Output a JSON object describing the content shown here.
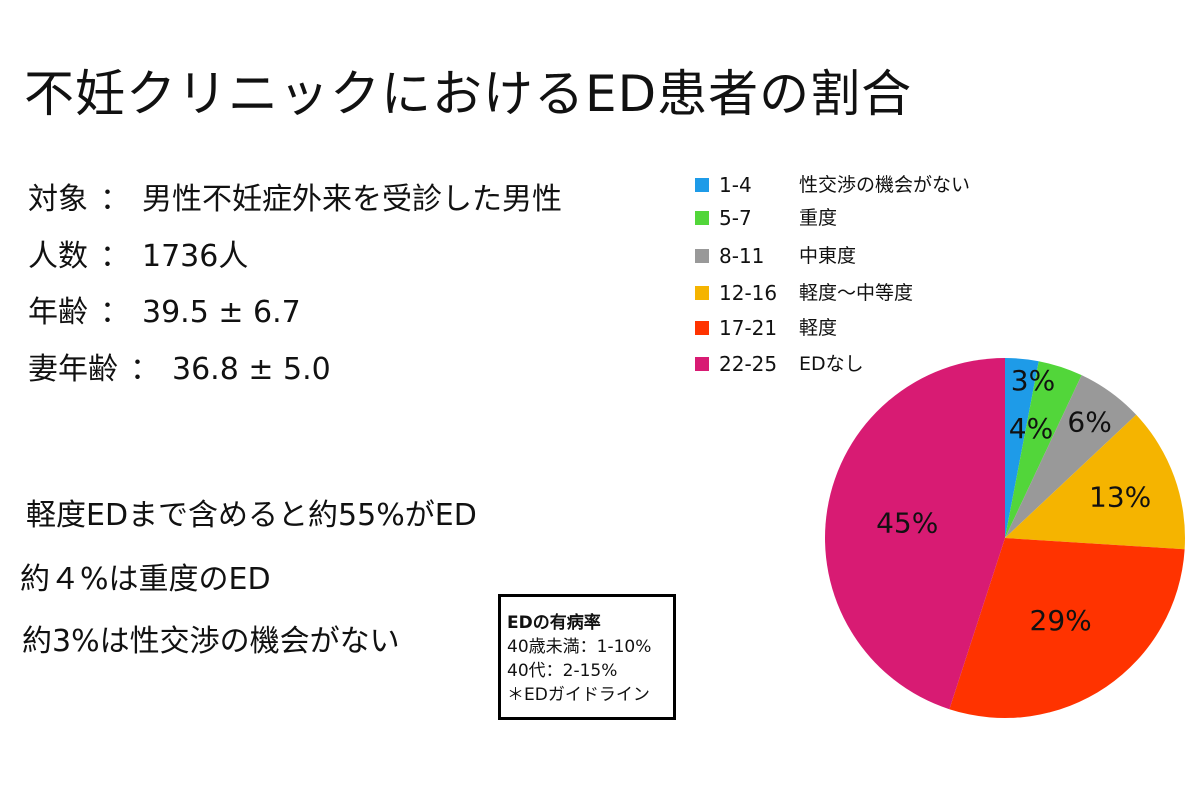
{
  "title": "不妊クリニックにおけるED患者の割合",
  "info": [
    {
      "label": "対象",
      "sep": "：",
      "value": "男性不妊症外来を受診した男性"
    },
    {
      "label": "人数",
      "sep": "：",
      "value": "1736人"
    },
    {
      "label": "年齢",
      "sep": "：",
      "value": "39.5 ± 6.7"
    },
    {
      "label": "妻年齢",
      "sep": "：",
      "value": "36.8 ± 5.0"
    }
  ],
  "summary": [
    "軽度EDまで含めると約55%がED",
    "約４%は重度のED",
    "約3%は性交渉の機会がない"
  ],
  "note": {
    "title": "EDの有病率",
    "lines": [
      "40歳未満：1-10%",
      "40代：2-15%",
      "＊EDガイドライン"
    ]
  },
  "chart_data": {
    "type": "pie",
    "title": "",
    "categories": [
      "1-4",
      "5-7",
      "8-11",
      "12-16",
      "17-21",
      "22-25"
    ],
    "descriptions": [
      "性交渉の機会がない",
      "重度",
      "中東度",
      "軽度～中等度",
      "軽度",
      "EDなし"
    ],
    "values": [
      3,
      4,
      6,
      13,
      29,
      45
    ],
    "labels": [
      "3%",
      "4%",
      "6%",
      "13%",
      "29%",
      "45%"
    ],
    "colors": [
      "#1E9BE8",
      "#52D63A",
      "#999999",
      "#F5B400",
      "#FF3300",
      "#D81B73"
    ],
    "legend_position": "top-left of chart",
    "start": "12 o'clock, clockwise"
  }
}
